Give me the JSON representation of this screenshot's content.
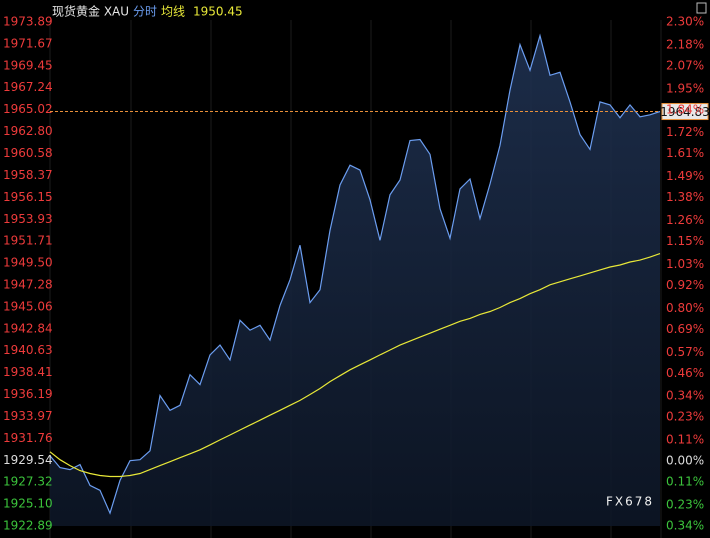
{
  "chart_data": {
    "type": "line",
    "title": "现货黄金 XAU",
    "avg_value": 1950.45,
    "current": 1964.83,
    "watermark": "FX678",
    "series": [
      {
        "name": "分时",
        "color": "#6b9df0",
        "values": [
          1930.0,
          1928.8,
          1928.6,
          1929.1,
          1927.0,
          1926.5,
          1924.2,
          1927.5,
          1929.5,
          1929.6,
          1930.5,
          1936.1,
          1934.6,
          1935.1,
          1938.2,
          1937.2,
          1940.2,
          1941.2,
          1939.7,
          1943.7,
          1942.7,
          1943.2,
          1941.7,
          1945.2,
          1947.8,
          1951.3,
          1945.5,
          1946.8,
          1952.8,
          1957.4,
          1959.4,
          1958.9,
          1955.9,
          1951.8,
          1956.4,
          1957.9,
          1961.9,
          1962.0,
          1960.5,
          1955.0,
          1952.0,
          1957.0,
          1958.0,
          1954.0,
          1957.5,
          1961.4,
          1967.0,
          1971.6,
          1969.0,
          1972.5,
          1968.5,
          1968.8,
          1965.8,
          1962.5,
          1961.0,
          1965.8,
          1965.5,
          1964.2,
          1965.5,
          1964.3,
          1964.5,
          1964.83
        ]
      },
      {
        "name": "均线",
        "color": "#e8e838",
        "values": [
          1930.4,
          1929.6,
          1929.0,
          1928.5,
          1928.2,
          1928.0,
          1927.9,
          1927.9,
          1928.0,
          1928.2,
          1928.6,
          1929.0,
          1929.4,
          1929.8,
          1930.2,
          1930.6,
          1931.1,
          1931.6,
          1932.1,
          1932.6,
          1933.1,
          1933.6,
          1934.1,
          1934.6,
          1935.1,
          1935.6,
          1936.2,
          1936.8,
          1937.5,
          1938.1,
          1938.7,
          1939.2,
          1939.7,
          1940.2,
          1940.7,
          1941.2,
          1941.6,
          1942.0,
          1942.4,
          1942.8,
          1943.2,
          1943.6,
          1943.9,
          1944.3,
          1944.6,
          1945.0,
          1945.5,
          1945.9,
          1946.4,
          1946.8,
          1947.3,
          1947.6,
          1947.9,
          1948.2,
          1948.5,
          1948.8,
          1949.1,
          1949.3,
          1949.6,
          1949.8,
          1950.1,
          1950.45
        ]
      }
    ],
    "ylim": [
      1922.89,
      1973.89
    ],
    "yticks": [
      1973.89,
      1971.67,
      1969.45,
      1967.24,
      1965.02,
      {
        "value": 1962.8,
        "label": "1962.80"
      },
      1960.58,
      1958.37,
      1956.15,
      1953.93,
      1951.71,
      {
        "value": 1949.5,
        "label": "1949.50"
      },
      1947.28,
      1945.06,
      1942.84,
      1940.63,
      1938.41,
      1936.19,
      1933.97,
      1931.76,
      1929.54,
      1927.32,
      {
        "value": 1925.1,
        "label": "1925.10"
      },
      1922.89
    ],
    "y2lim": [
      -0.34,
      2.3
    ],
    "y2ticks": [
      {
        "value": 2.3,
        "label": "2.30%"
      },
      {
        "value": 2.18,
        "label": "2.18%"
      },
      {
        "value": 2.07,
        "label": "2.07%"
      },
      {
        "value": 1.95,
        "label": "1.95%"
      },
      {
        "value": 1.84,
        "label": "1.84%"
      },
      {
        "value": 1.72,
        "label": "1.72%"
      },
      {
        "value": 1.61,
        "label": "1.61%"
      },
      {
        "value": 1.49,
        "label": "1.49%"
      },
      {
        "value": 1.38,
        "label": "1.38%"
      },
      {
        "value": 1.26,
        "label": "1.26%"
      },
      {
        "value": 1.15,
        "label": "1.15%"
      },
      {
        "value": 1.03,
        "label": "1.03%"
      },
      {
        "value": 0.92,
        "label": "0.92%"
      },
      {
        "value": 0.8,
        "label": "0.80%"
      },
      {
        "value": 0.69,
        "label": "0.69%"
      },
      {
        "value": 0.57,
        "label": "0.57%"
      },
      {
        "value": 0.46,
        "label": "0.46%"
      },
      {
        "value": 0.34,
        "label": "0.34%"
      },
      {
        "value": 0.23,
        "label": "0.23%"
      },
      {
        "value": 0.11,
        "label": "0.11%"
      },
      {
        "value": 0,
        "label": "0.00%"
      },
      {
        "value": -0.11,
        "label": "0.11%"
      },
      {
        "value": -0.23,
        "label": "0.23%"
      },
      {
        "value": -0.34,
        "label": "0.34%"
      }
    ]
  }
}
